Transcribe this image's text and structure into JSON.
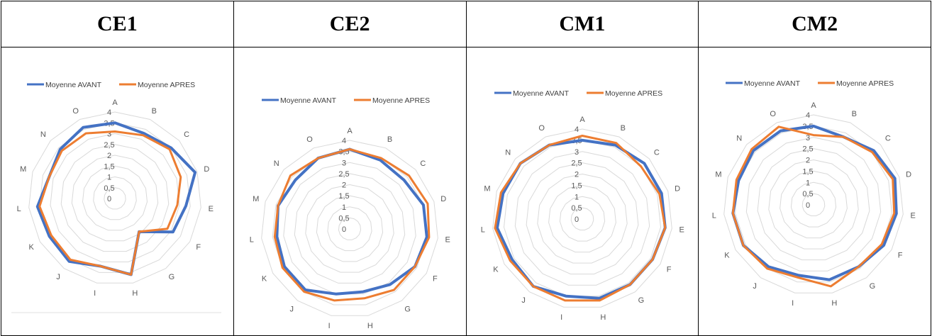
{
  "headers": [
    "CE1",
    "CE2",
    "CM1",
    "CM2"
  ],
  "colors": {
    "avant": "#4472C4",
    "apres": "#ED7D31",
    "grid": "#D9D9D9"
  },
  "chart_data": [
    {
      "type": "radar",
      "panel": "CE1",
      "categories": [
        "A",
        "B",
        "C",
        "D",
        "E",
        "F",
        "G",
        "H",
        "I",
        "J",
        "K",
        "L",
        "M",
        "N",
        "O"
      ],
      "r_ticks": [
        "0",
        "0,5",
        "1",
        "1,5",
        "2",
        "2,5",
        "3",
        "3,5",
        "4"
      ],
      "rlim": [
        0,
        4
      ],
      "legend_position": "top",
      "series": [
        {
          "name": "Moyenne AVANT",
          "values": [
            3.5,
            3.3,
            3.5,
            3.9,
            3.3,
            3.1,
            1.9,
            3.6,
            3.2,
            3.6,
            3.5,
            3.6,
            3.2,
            3.4,
            3.6
          ]
        },
        {
          "name": "Moyenne APRES",
          "values": [
            3.1,
            3.2,
            3.4,
            3.2,
            2.9,
            2.8,
            1.9,
            3.6,
            3.2,
            3.5,
            3.4,
            3.5,
            3.2,
            3.3,
            3.3
          ]
        }
      ]
    },
    {
      "type": "radar",
      "panel": "CE2",
      "categories": [
        "A",
        "B",
        "C",
        "D",
        "E",
        "F",
        "G",
        "H",
        "I",
        "J",
        "K",
        "L",
        "M",
        "N",
        "O"
      ],
      "r_ticks": [
        "0",
        "0,5",
        "1",
        "1,5",
        "2",
        "2,5",
        "3",
        "3,5",
        "4"
      ],
      "rlim": [
        0,
        4
      ],
      "legend_position": "top",
      "series": [
        {
          "name": "Moyenne AVANT",
          "values": [
            3.6,
            3.4,
            3.3,
            3.5,
            3.5,
            3.4,
            3.1,
            2.9,
            3.0,
            3.4,
            3.4,
            3.3,
            3.4,
            3.3,
            3.5
          ]
        },
        {
          "name": "Moyenne APRES",
          "values": [
            3.6,
            3.5,
            3.6,
            3.7,
            3.6,
            3.4,
            3.4,
            3.2,
            3.3,
            3.5,
            3.5,
            3.4,
            3.4,
            3.6,
            3.5
          ]
        }
      ]
    },
    {
      "type": "radar",
      "panel": "CM1",
      "categories": [
        "A",
        "B",
        "C",
        "D",
        "E",
        "F",
        "G",
        "H",
        "I",
        "J",
        "K",
        "L",
        "M",
        "N",
        "O"
      ],
      "r_ticks": [
        "0",
        "0,5",
        "1",
        "1,5",
        "2",
        "2,5",
        "3",
        "3,5",
        "4"
      ],
      "rlim": [
        0,
        4
      ],
      "legend_position": "top",
      "series": [
        {
          "name": "Moyenne AVANT",
          "values": [
            3.5,
            3.6,
            3.7,
            3.7,
            3.7,
            3.6,
            3.6,
            3.6,
            3.5,
            3.7,
            3.6,
            3.8,
            3.7,
            3.7,
            3.6
          ]
        },
        {
          "name": "Moyenne APRES",
          "values": [
            3.7,
            3.7,
            3.5,
            3.6,
            3.7,
            3.6,
            3.6,
            3.7,
            3.7,
            3.7,
            3.7,
            3.9,
            3.8,
            3.7,
            3.6
          ]
        }
      ]
    },
    {
      "type": "radar",
      "panel": "CM2",
      "categories": [
        "A",
        "B",
        "C",
        "D",
        "E",
        "F",
        "G",
        "H",
        "I",
        "J",
        "K",
        "L",
        "M",
        "N",
        "O"
      ],
      "r_ticks": [
        "0",
        "0,5",
        "1",
        "1,5",
        "2",
        "2,5",
        "3",
        "3,5",
        "4"
      ],
      "rlim": [
        0,
        4
      ],
      "legend_position": "top",
      "series": [
        {
          "name": "Moyenne AVANT",
          "values": [
            3.5,
            3.3,
            3.6,
            3.8,
            3.7,
            3.6,
            3.4,
            3.4,
            3.2,
            3.4,
            3.6,
            3.6,
            3.5,
            3.6,
            3.6
          ]
        },
        {
          "name": "Moyenne APRES",
          "values": [
            3.1,
            3.3,
            3.5,
            3.7,
            3.6,
            3.5,
            3.4,
            3.7,
            3.3,
            3.5,
            3.6,
            3.6,
            3.6,
            3.7,
            3.8
          ]
        }
      ]
    }
  ]
}
